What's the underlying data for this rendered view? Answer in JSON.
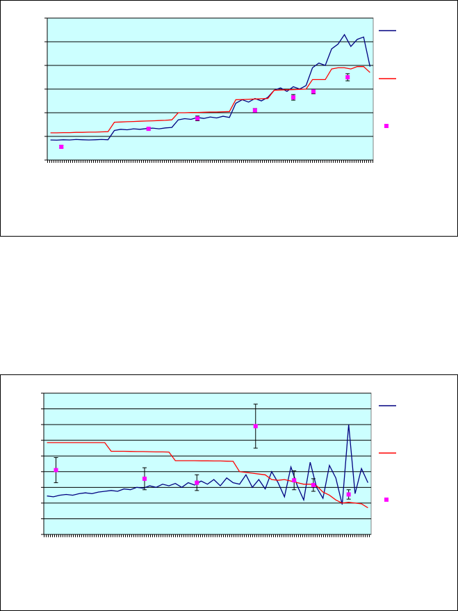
{
  "chart_data": [
    {
      "type": "line",
      "grid": true,
      "legend": "right",
      "plot_background": "#ccffff",
      "xlim": [
        -1,
        101
      ],
      "ylim": [
        0,
        6
      ],
      "yticks": [
        0,
        1,
        2,
        3,
        4,
        5,
        6
      ],
      "series": [
        {
          "type": "line",
          "color": "#000080",
          "x": [
            0,
            2,
            4,
            6,
            8,
            10,
            12,
            14,
            16,
            18,
            20,
            22,
            24,
            26,
            28,
            30,
            32,
            34,
            36,
            38,
            40,
            42,
            44,
            46,
            48,
            50,
            52,
            54,
            56,
            58,
            60,
            62,
            64,
            66,
            68,
            70,
            72,
            74,
            76,
            78,
            80,
            82,
            84,
            86,
            88,
            90,
            92,
            94,
            96,
            98,
            100
          ],
          "values": [
            0.85,
            0.84,
            0.86,
            0.85,
            0.87,
            0.86,
            0.85,
            0.86,
            0.87,
            0.86,
            1.25,
            1.3,
            1.28,
            1.32,
            1.3,
            1.33,
            1.35,
            1.32,
            1.36,
            1.38,
            1.7,
            1.75,
            1.72,
            1.8,
            1.76,
            1.82,
            1.78,
            1.85,
            1.8,
            2.4,
            2.55,
            2.45,
            2.6,
            2.5,
            2.65,
            2.95,
            3.05,
            2.9,
            3.1,
            3.0,
            3.15,
            3.9,
            4.1,
            4.0,
            4.7,
            4.9,
            5.3,
            4.8,
            5.1,
            5.2,
            3.95
          ]
        },
        {
          "type": "line",
          "color": "#ff0000",
          "x": [
            0,
            2,
            4,
            6,
            8,
            10,
            12,
            14,
            16,
            18,
            20,
            22,
            24,
            26,
            28,
            30,
            32,
            34,
            36,
            38,
            40,
            42,
            44,
            46,
            48,
            50,
            52,
            54,
            56,
            58,
            60,
            62,
            64,
            66,
            68,
            70,
            72,
            74,
            76,
            78,
            80,
            82,
            84,
            86,
            88,
            90,
            92,
            94,
            96,
            98,
            100
          ],
          "values": [
            1.15,
            1.15,
            1.16,
            1.16,
            1.17,
            1.17,
            1.18,
            1.18,
            1.19,
            1.2,
            1.6,
            1.61,
            1.62,
            1.63,
            1.64,
            1.65,
            1.66,
            1.67,
            1.68,
            1.7,
            2.0,
            2.0,
            2.01,
            2.01,
            2.02,
            2.03,
            2.03,
            2.04,
            2.05,
            2.55,
            2.56,
            2.57,
            2.58,
            2.59,
            2.6,
            2.95,
            2.96,
            2.97,
            2.98,
            2.99,
            3.0,
            3.4,
            3.4,
            3.4,
            3.85,
            3.9,
            3.9,
            3.85,
            3.95,
            3.95,
            3.7
          ]
        },
        {
          "type": "scatter",
          "color": "#ff00ff",
          "x": [
            3.4,
            30.7,
            46,
            64,
            76,
            82.3,
            93
          ],
          "values": [
            0.56,
            1.32,
            1.76,
            2.1,
            2.65,
            2.9,
            3.5
          ],
          "errors": [
            0.05,
            0.05,
            0.1,
            0.08,
            0.12,
            0.1,
            0.15
          ]
        }
      ]
    },
    {
      "type": "line",
      "grid": true,
      "legend": "right",
      "plot_background": "#ccffff",
      "xlim": [
        -1,
        101
      ],
      "ylim": [
        0,
        9
      ],
      "yticks": [
        0,
        1,
        2,
        3,
        4,
        5,
        6,
        7,
        8,
        9
      ],
      "series": [
        {
          "type": "line",
          "color": "#000080",
          "x": [
            0,
            2,
            4,
            6,
            8,
            10,
            12,
            14,
            16,
            18,
            20,
            22,
            24,
            26,
            28,
            30,
            32,
            34,
            36,
            38,
            40,
            42,
            44,
            46,
            48,
            50,
            52,
            54,
            56,
            58,
            60,
            62,
            64,
            66,
            68,
            70,
            72,
            74,
            76,
            78,
            80,
            82,
            84,
            86,
            88,
            90,
            92,
            94,
            96,
            98,
            100
          ],
          "values": [
            2.45,
            2.4,
            2.5,
            2.55,
            2.5,
            2.6,
            2.65,
            2.6,
            2.7,
            2.75,
            2.8,
            2.75,
            2.9,
            2.85,
            3.0,
            2.95,
            3.1,
            3.0,
            3.2,
            3.1,
            3.25,
            3.0,
            3.3,
            3.15,
            3.4,
            3.2,
            3.5,
            3.1,
            3.6,
            3.3,
            3.2,
            3.8,
            3.0,
            3.5,
            2.9,
            4.0,
            3.3,
            2.4,
            4.3,
            3.1,
            2.2,
            4.6,
            3.0,
            2.3,
            4.4,
            3.6,
            1.9,
            7.0,
            2.6,
            4.2,
            3.3
          ]
        },
        {
          "type": "line",
          "color": "#ff0000",
          "x": [
            0,
            2,
            4,
            6,
            8,
            10,
            12,
            14,
            16,
            18,
            20,
            22,
            24,
            26,
            28,
            30,
            32,
            34,
            36,
            38,
            40,
            42,
            44,
            46,
            48,
            50,
            52,
            54,
            56,
            58,
            60,
            62,
            64,
            66,
            68,
            70,
            72,
            74,
            76,
            78,
            80,
            82,
            84,
            86,
            88,
            90,
            92,
            94,
            96,
            98,
            100
          ],
          "values": [
            5.85,
            5.85,
            5.85,
            5.85,
            5.85,
            5.85,
            5.85,
            5.85,
            5.85,
            5.85,
            5.3,
            5.3,
            5.3,
            5.29,
            5.28,
            5.28,
            5.27,
            5.26,
            5.26,
            5.25,
            4.7,
            4.7,
            4.7,
            4.7,
            4.69,
            4.69,
            4.68,
            4.68,
            4.67,
            4.66,
            4.0,
            3.95,
            3.9,
            3.85,
            3.8,
            3.5,
            3.45,
            3.5,
            3.4,
            3.3,
            3.2,
            3.2,
            3.1,
            2.7,
            2.5,
            2.2,
            2.0,
            2.05,
            2.0,
            1.95,
            1.7
          ]
        },
        {
          "type": "scatter",
          "color": "#ff00ff",
          "x": [
            2.8,
            30.4,
            46.7,
            65,
            77,
            83,
            94
          ],
          "values": [
            4.1,
            3.55,
            3.3,
            6.9,
            3.45,
            3.15,
            2.55
          ],
          "errors": [
            0.8,
            0.7,
            0.5,
            1.4,
            0.6,
            0.4,
            0.3
          ]
        }
      ]
    }
  ]
}
